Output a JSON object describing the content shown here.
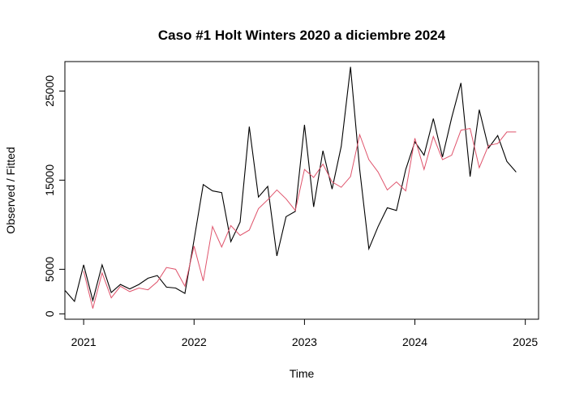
{
  "chart_data": {
    "type": "line",
    "title": "Caso #1 Holt Winters 2020 a diciembre 2024",
    "xlabel": "Time",
    "ylabel": "Observed / Fitted",
    "xlim": [
      2020.83,
      2025.12
    ],
    "ylim": [
      -600,
      28300
    ],
    "x_ticks": [
      2021,
      2022,
      2023,
      2024,
      2025
    ],
    "x_tick_labels": [
      "2021",
      "2022",
      "2023",
      "2024",
      "2025"
    ],
    "y_ticks": [
      0,
      5000,
      15000,
      25000
    ],
    "y_tick_labels": [
      "0",
      "5000",
      "15000",
      "25000"
    ],
    "grid": false,
    "legend": "none",
    "series": [
      {
        "color": "#000000",
        "x": [
          2020.833,
          2020.917,
          2021.0,
          2021.083,
          2021.167,
          2021.25,
          2021.333,
          2021.417,
          2021.5,
          2021.583,
          2021.667,
          2021.75,
          2021.833,
          2021.917,
          2022.0,
          2022.083,
          2022.167,
          2022.25,
          2022.333,
          2022.417,
          2022.5,
          2022.583,
          2022.667,
          2022.75,
          2022.833,
          2022.917,
          2023.0,
          2023.083,
          2023.167,
          2023.25,
          2023.333,
          2023.417,
          2023.5,
          2023.583,
          2023.667,
          2023.75,
          2023.833,
          2023.917,
          2024.0,
          2024.083,
          2024.167,
          2024.25,
          2024.333,
          2024.417,
          2024.5,
          2024.583,
          2024.667,
          2024.75,
          2024.833,
          2024.917
        ],
        "values": [
          2600,
          1400,
          5500,
          1500,
          5500,
          2400,
          3300,
          2800,
          3300,
          4000,
          4300,
          3000,
          2900,
          2300,
          8300,
          14500,
          13800,
          13600,
          8100,
          10300,
          21000,
          13100,
          14300,
          6500,
          10900,
          11500,
          21200,
          12000,
          18300,
          14000,
          18800,
          27700,
          16200,
          7300,
          9800,
          11900,
          11600,
          16200,
          19300,
          17800,
          21900,
          17600,
          22000,
          25900,
          15400,
          22900,
          18600,
          20000,
          17100,
          15900
        ]
      },
      {
        "color": "#DF536B",
        "x": [
          2021.0,
          2021.083,
          2021.167,
          2021.25,
          2021.333,
          2021.417,
          2021.5,
          2021.583,
          2021.667,
          2021.75,
          2021.833,
          2021.917,
          2022.0,
          2022.083,
          2022.167,
          2022.25,
          2022.333,
          2022.417,
          2022.5,
          2022.583,
          2022.667,
          2022.75,
          2022.833,
          2022.917,
          2023.0,
          2023.083,
          2023.167,
          2023.25,
          2023.333,
          2023.417,
          2023.5,
          2023.583,
          2023.667,
          2023.75,
          2023.833,
          2023.917,
          2024.0,
          2024.083,
          2024.167,
          2024.25,
          2024.333,
          2024.417,
          2024.5,
          2024.583,
          2024.667,
          2024.75,
          2024.833,
          2024.917
        ],
        "values": [
          4800,
          600,
          4600,
          1800,
          3100,
          2500,
          2900,
          2700,
          3600,
          5200,
          5000,
          3100,
          7600,
          3700,
          9800,
          7500,
          9900,
          8800,
          9400,
          11800,
          12800,
          13900,
          12900,
          11600,
          16200,
          15300,
          16800,
          14800,
          14200,
          15400,
          20100,
          17300,
          15900,
          13900,
          14800,
          13800,
          19700,
          16200,
          19900,
          17300,
          17800,
          20600,
          20800,
          16400,
          18900,
          19100,
          20400,
          20400
        ]
      }
    ]
  }
}
